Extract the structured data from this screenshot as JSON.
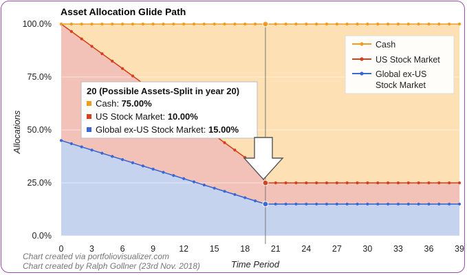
{
  "chart_data": {
    "type": "area",
    "title": "Asset Allocation Glide Path",
    "xlabel": "Time Period",
    "ylabel": "Allocations",
    "xlim": [
      0,
      39
    ],
    "ylim": [
      0,
      100
    ],
    "x_ticks": [
      0,
      3,
      6,
      9,
      12,
      15,
      18,
      21,
      24,
      27,
      30,
      33,
      36,
      39
    ],
    "y_ticks": [
      "0.0%",
      "25.0%",
      "50.0%",
      "75.0%",
      "100.0%"
    ],
    "stacked": true,
    "x": [
      0,
      1,
      2,
      3,
      4,
      5,
      6,
      7,
      8,
      9,
      10,
      11,
      12,
      13,
      14,
      15,
      16,
      17,
      18,
      19,
      20,
      21,
      22,
      23,
      24,
      25,
      26,
      27,
      28,
      29,
      30,
      31,
      32,
      33,
      34,
      35,
      36,
      37,
      38,
      39
    ],
    "series": [
      {
        "name": "Global ex-US Stock Market",
        "color": "#3b67d4",
        "fill": "#c5d3ef",
        "values": [
          45,
          43.5,
          42,
          40.5,
          39,
          37.5,
          36,
          34.5,
          33,
          31.5,
          30,
          28.5,
          27,
          25.5,
          24,
          22.5,
          21,
          19.5,
          18,
          16.5,
          15,
          15,
          15,
          15,
          15,
          15,
          15,
          15,
          15,
          15,
          15,
          15,
          15,
          15,
          15,
          15,
          15,
          15,
          15,
          15
        ]
      },
      {
        "name": "US Stock Market",
        "color": "#d5401e",
        "fill": "#f2c2b8",
        "values": [
          55,
          53,
          51,
          49,
          47,
          45,
          43,
          41,
          39,
          37,
          35,
          33,
          31,
          29,
          27,
          25,
          23,
          21,
          19,
          17,
          10,
          10,
          10,
          10,
          10,
          10,
          10,
          10,
          10,
          10,
          10,
          10,
          10,
          10,
          10,
          10,
          10,
          10,
          10,
          10
        ]
      },
      {
        "name": "Cash",
        "color": "#f29b1e",
        "fill": "#fde0b4",
        "values": [
          0,
          3.5,
          7,
          10.5,
          14,
          17.5,
          21,
          24.5,
          28,
          31.5,
          35,
          38.5,
          42,
          45.5,
          49,
          52.5,
          56,
          59.5,
          63,
          66.5,
          75,
          75,
          75,
          75,
          75,
          75,
          75,
          75,
          75,
          75,
          75,
          75,
          75,
          75,
          75,
          75,
          75,
          75,
          75,
          75
        ]
      }
    ],
    "legend": {
      "position": "top-right",
      "entries": [
        "Cash",
        "US Stock Market",
        "Global ex-US Stock Market"
      ]
    },
    "tooltip": {
      "title": "20 (Possible Assets-Split in year 20)",
      "x": 20,
      "rows": [
        {
          "label": "Cash: ",
          "value": "75.00%",
          "color": "#f29b1e"
        },
        {
          "label": "US Stock Market: ",
          "value": "10.00%",
          "color": "#d5401e"
        },
        {
          "label": "Global ex-US Stock Market: ",
          "value": "15.00%",
          "color": "#3b67d4"
        }
      ]
    },
    "credits": [
      "Chart created via portfoliovisualizer.com",
      "Chart created by Ralph Gollner (23rd Nov. 2018)"
    ],
    "grid": true
  }
}
